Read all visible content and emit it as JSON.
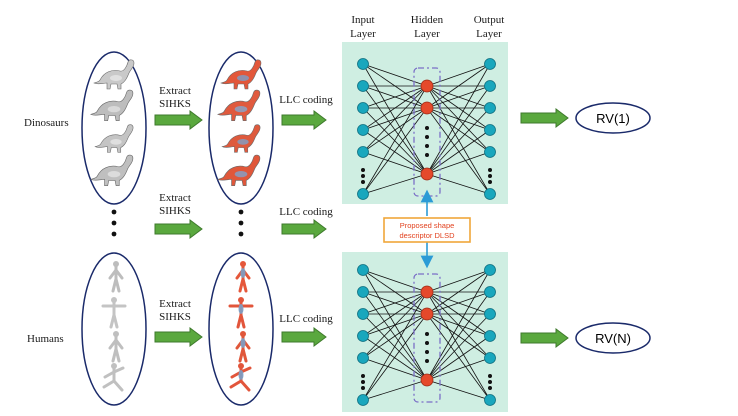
{
  "layer_headers": {
    "input": [
      "Input",
      "Layer"
    ],
    "hidden": [
      "Hidden",
      "Layer"
    ],
    "output": [
      "Output",
      "Layer"
    ]
  },
  "rows": [
    {
      "category": "Dinosaurs",
      "extract": [
        "Extract",
        "SIHKS"
      ],
      "coding": "LLC coding",
      "result": "RV(1)"
    },
    {
      "category": "",
      "extract": [
        "Extract",
        "SIHKS"
      ],
      "coding": "LLC coding",
      "result": ""
    },
    {
      "category": "Humans",
      "extract": [
        "Extract",
        "SIHKS"
      ],
      "coding": "LLC coding",
      "result": "RV(N)"
    }
  ],
  "descriptor_box": [
    "Proposed shape",
    "descriptor DLSD"
  ],
  "colors": {
    "arrow_green": "#5aa83e",
    "arrow_dark": "#3e7a2c",
    "panel": "#cfeee2",
    "node_cyan": "#19a7bd",
    "node_red": "#e5492b",
    "dashed_purple": "#7b6fc7",
    "descriptor_border": "#f0a63a",
    "descriptor_text": "#e2421f",
    "link_blue": "#2b9bd6"
  }
}
